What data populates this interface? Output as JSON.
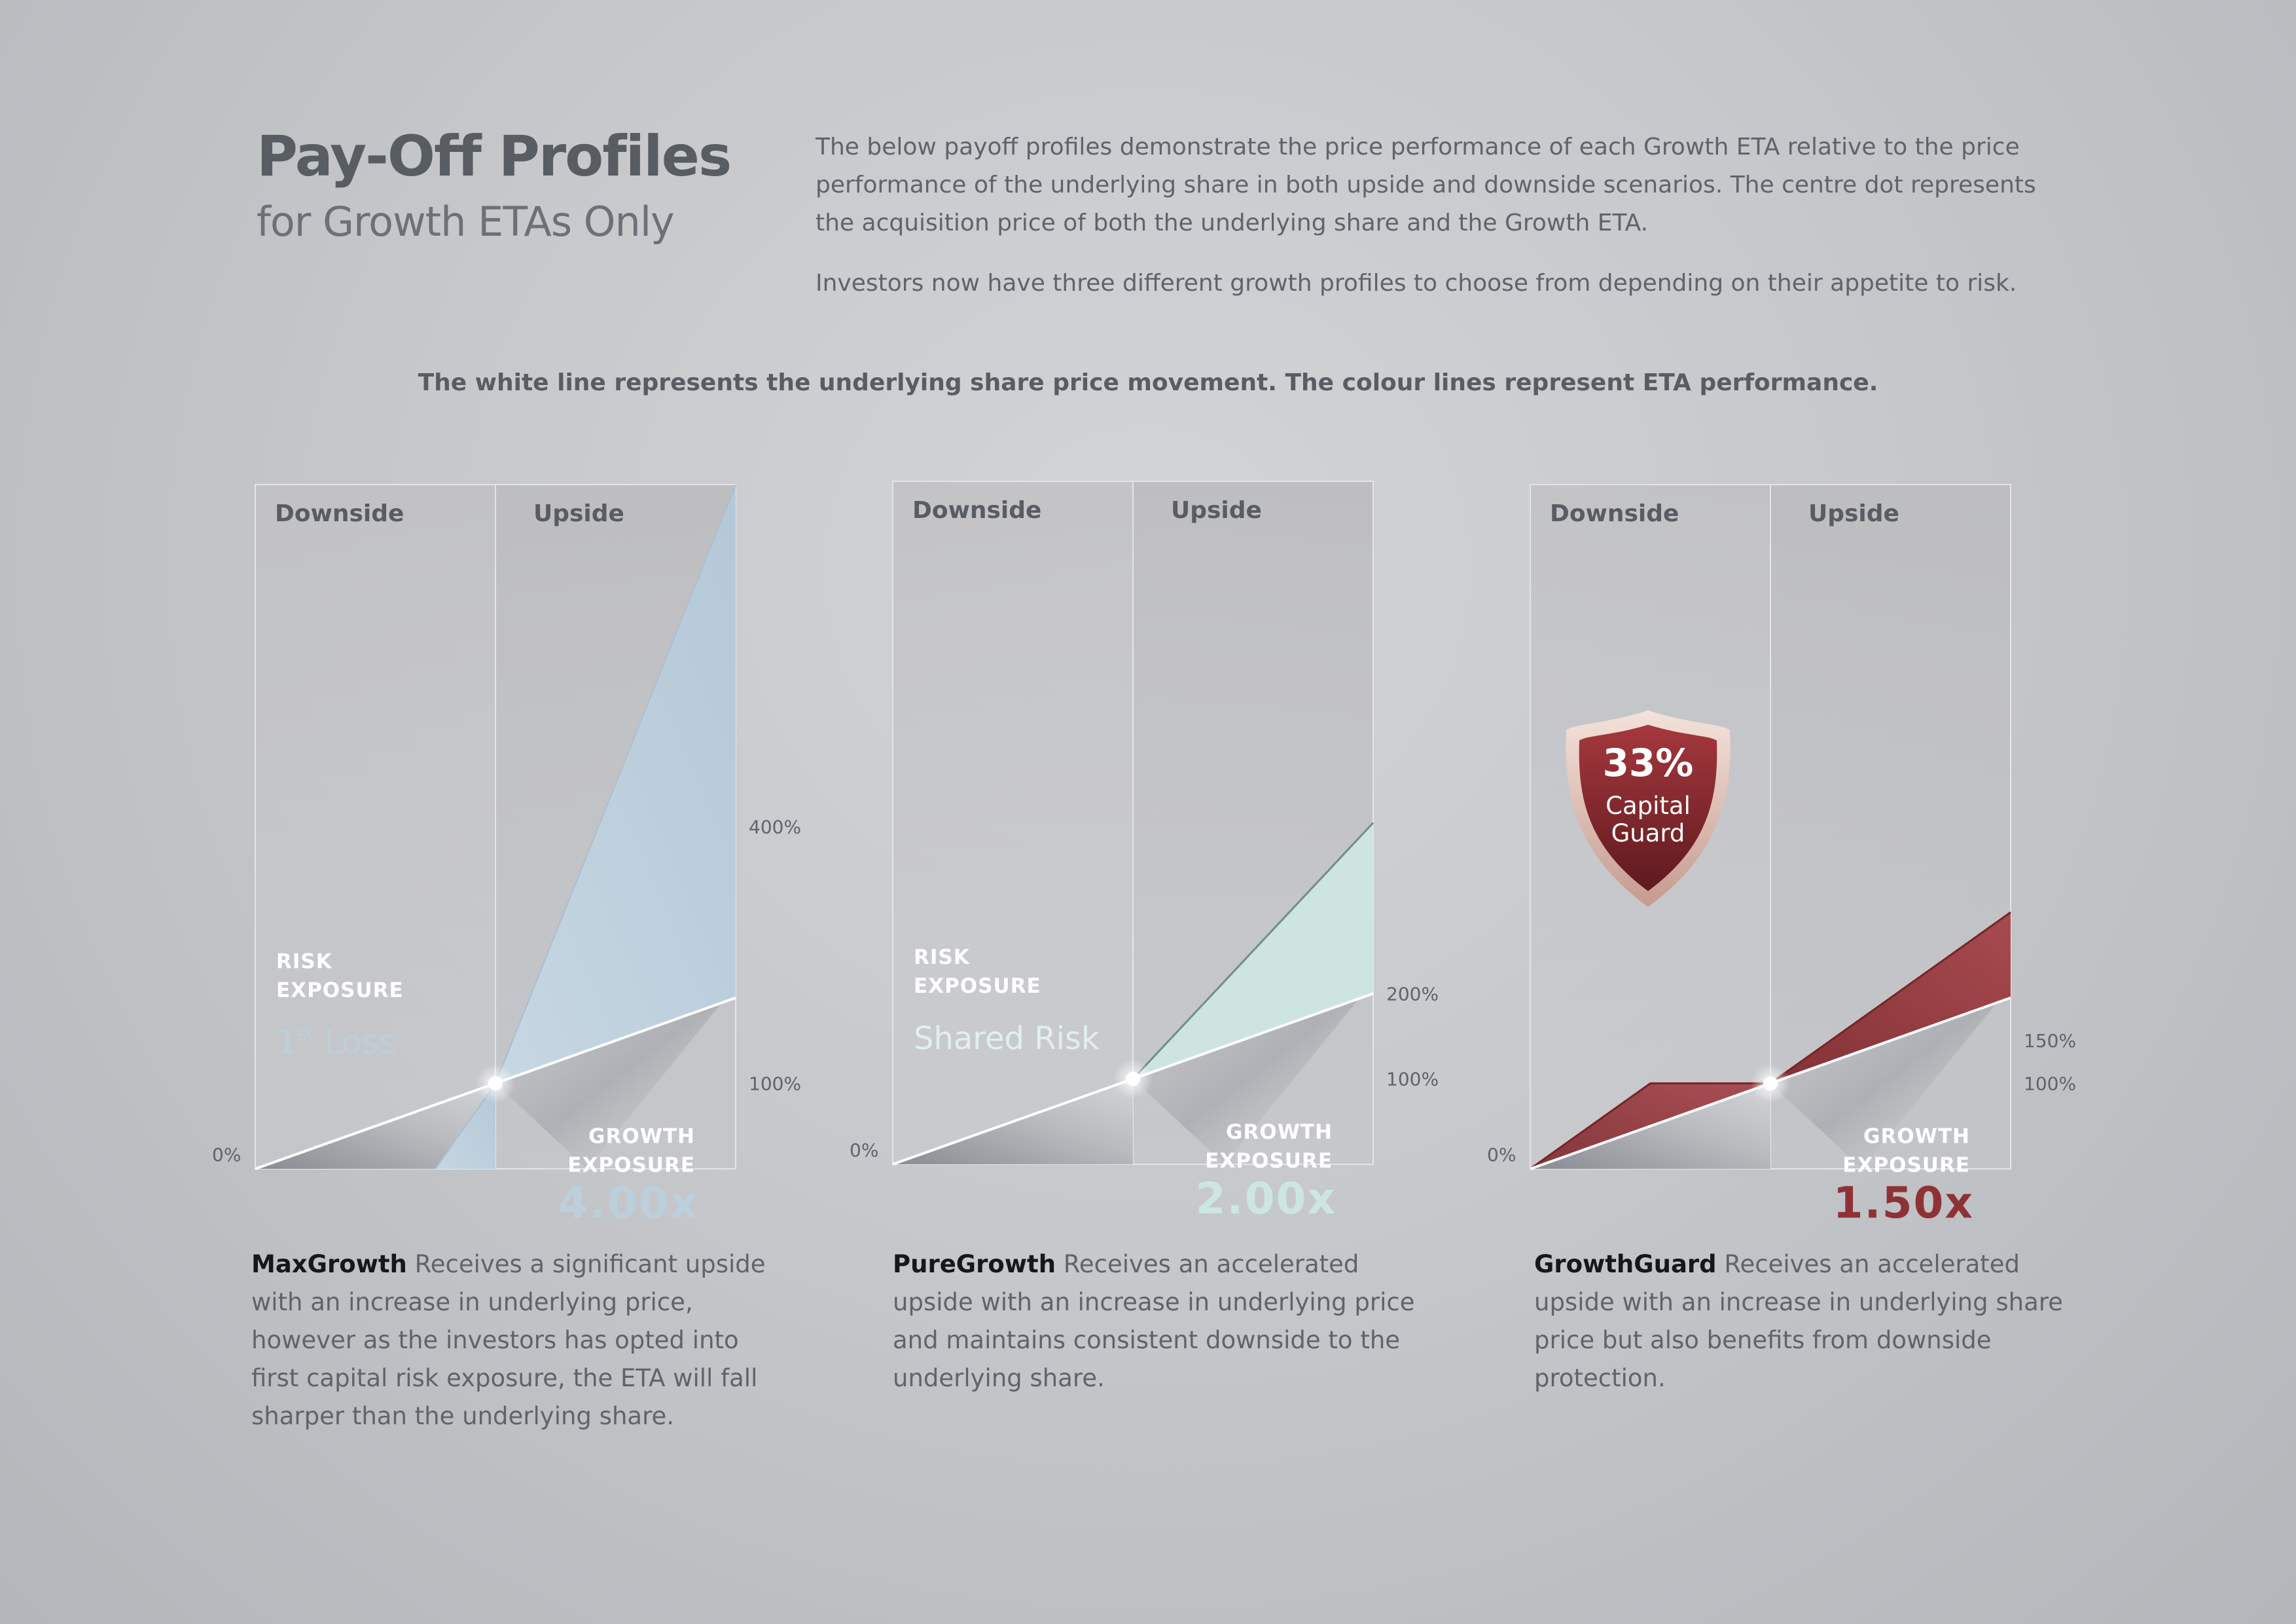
{
  "header": {
    "title": "Pay-Off Profiles",
    "subtitle": "for Growth ETAs Only",
    "intro_p1": "The below payoff profiles demonstrate the price performance of each Growth ETA relative to the price performance of the underlying share in both upside and downside scenarios. The centre dot represents the acquisition price of both the underlying share and the Growth ETA.",
    "intro_p2": "Investors now have three different growth profiles to choose from depending on their appetite to risk.",
    "note": "The white line represents the underlying share price movement. The colour lines represent ETA performance."
  },
  "colors": {
    "maxgrowth": "#bccfdc",
    "puregrowth": "#cde6e1",
    "growthguard": "#8e3236",
    "white_line": "#ffffff"
  },
  "chart_data": [
    {
      "type": "line",
      "name": "MaxGrowth",
      "panel_labels": [
        "Downside",
        "Upside"
      ],
      "y_ticks": [
        "0%",
        "100%",
        "400%"
      ],
      "risk_label": "RISK\nEXPOSURE",
      "risk_value_base": "1",
      "risk_value_sup": "st",
      "risk_value_rest": " Loss",
      "growth_label": "GROWTH\nEXPOSURE",
      "growth_value": "4.00x",
      "x": [
        -1,
        0,
        1
      ],
      "series": [
        {
          "values": [
            0,
            50,
            100
          ]
        },
        {
          "values": [
            -150,
            50,
            400
          ]
        }
      ],
      "ylim": [
        0,
        400
      ]
    },
    {
      "type": "line",
      "name": "PureGrowth",
      "panel_labels": [
        "Downside",
        "Upside"
      ],
      "y_ticks": [
        "0%",
        "100%",
        "200%"
      ],
      "risk_label": "RISK\nEXPOSURE",
      "risk_value": "Shared Risk",
      "growth_label": "GROWTH\nEXPOSURE",
      "growth_value": "2.00x",
      "x": [
        -1,
        0,
        1
      ],
      "series": [
        {
          "values": [
            0,
            50,
            100
          ]
        },
        {
          "values": [
            0,
            50,
            200
          ]
        }
      ],
      "ylim": [
        0,
        400
      ]
    },
    {
      "type": "line",
      "name": "GrowthGuard",
      "panel_labels": [
        "Downside",
        "Upside"
      ],
      "y_ticks": [
        "0%",
        "100%",
        "150%"
      ],
      "badge_value": "33%",
      "badge_label": "Capital\nGuard",
      "growth_label": "GROWTH\nEXPOSURE",
      "growth_value": "1.50x",
      "x": [
        -1,
        -0.5,
        0,
        1
      ],
      "series": [
        {
          "values": [
            0,
            50,
            50,
            100
          ]
        },
        {
          "values": [
            0,
            50,
            50,
            150
          ]
        }
      ],
      "ylim": [
        0,
        400
      ]
    }
  ],
  "descriptions": [
    {
      "name": "MaxGrowth",
      "text": " Receives a significant upside with an increase in underlying price, however as the investors has opted into first capital risk exposure, the ETA will fall sharper than the underlying share."
    },
    {
      "name": "PureGrowth",
      "text": " Receives an accelerated upside with an increase in underlying price and maintains consistent downside to the underlying share."
    },
    {
      "name": "GrowthGuard",
      "text": " Receives an accelerated upside with an increase in underlying share price but also benefits from downside protection."
    }
  ]
}
